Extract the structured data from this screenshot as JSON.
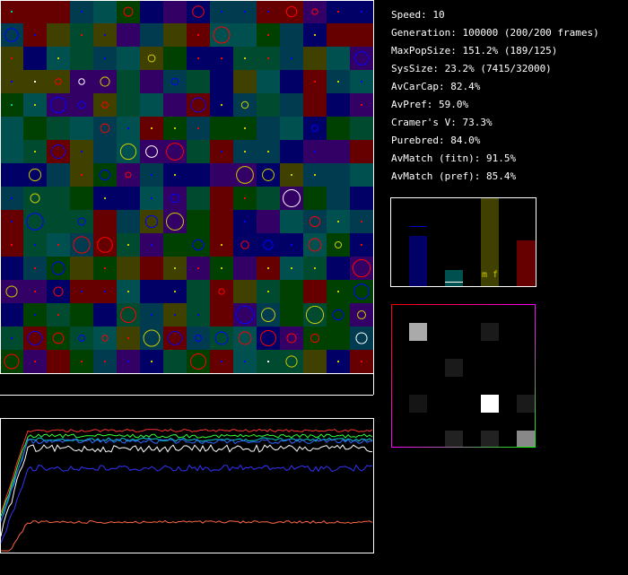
{
  "stats": [
    "Speed: 10",
    "Generation: 100000 (200/200 frames)",
    "MaxPopSize: 151.2% (189/125)",
    "SysSize: 23.2% (7415/32000)",
    "AvCarCap: 82.4%",
    "AvPref: 59.0%",
    "Cramer's V: 73.3%",
    "Purebred: 84.0%",
    "AvMatch (fitn): 91.5%",
    "AvMatch (pref): 85.4%"
  ],
  "bar_label": "m f"
}
